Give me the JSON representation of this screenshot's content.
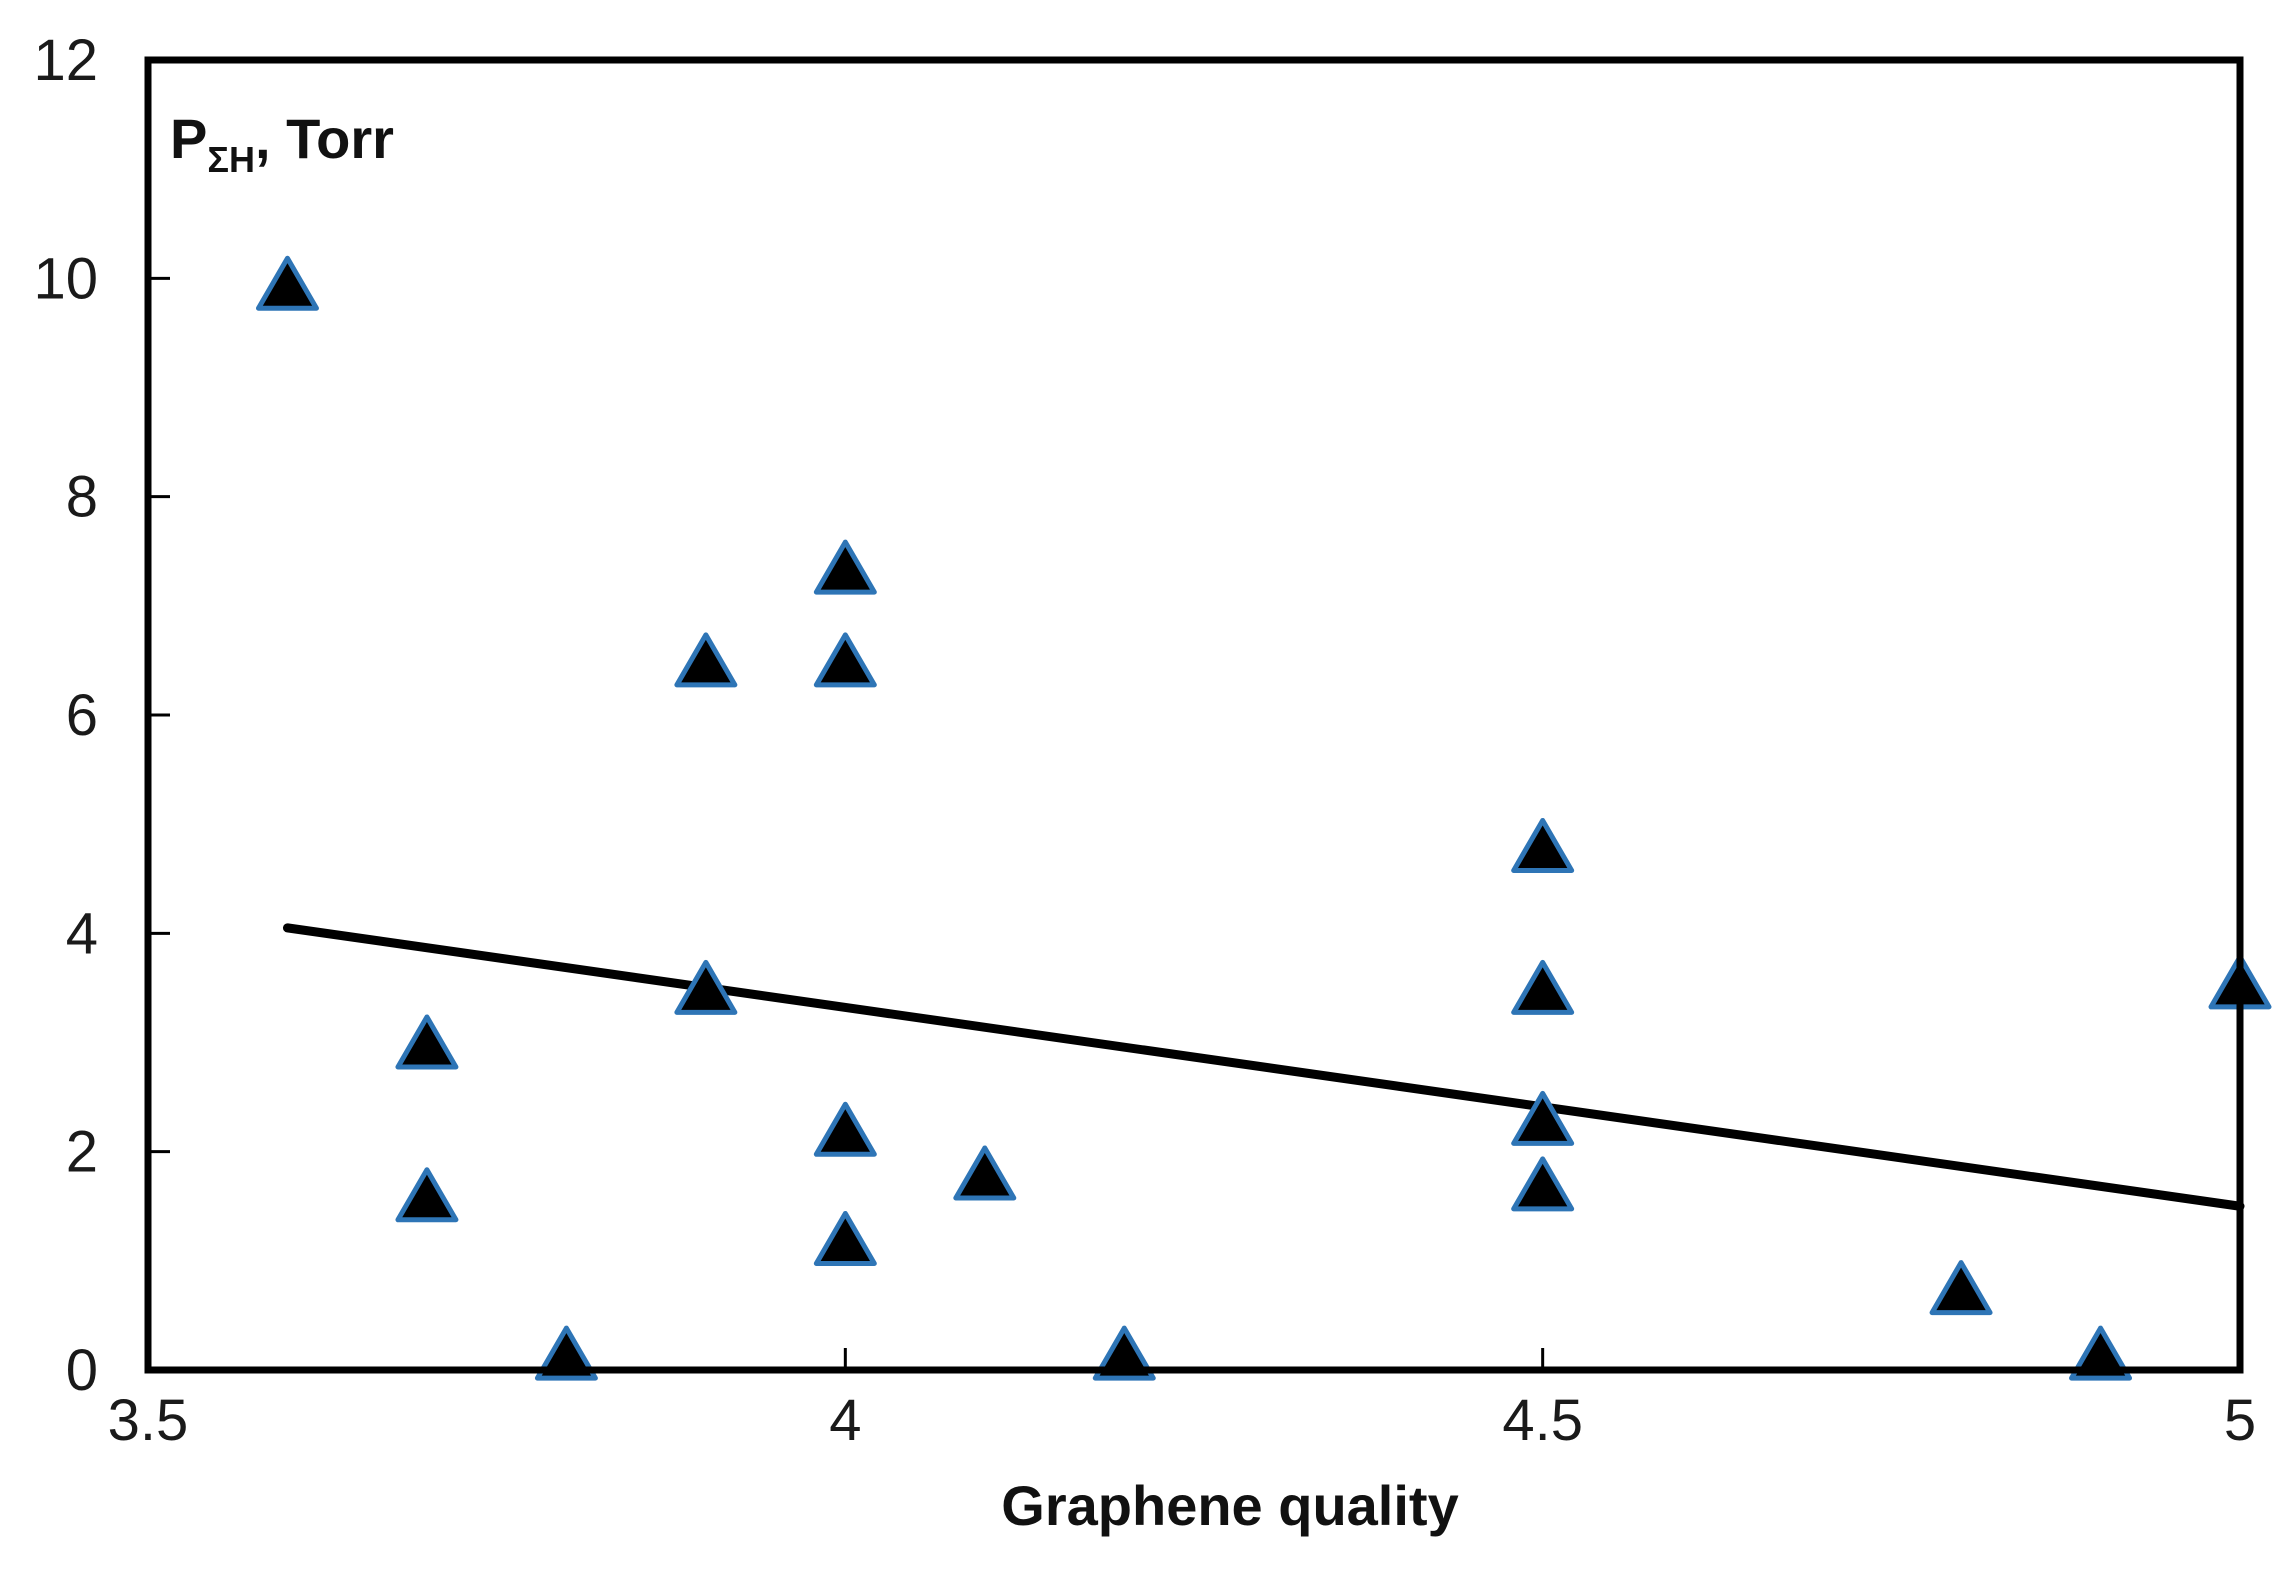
{
  "chart_data": {
    "type": "scatter",
    "title": "",
    "xlabel": "Graphene quality",
    "ylabel": {
      "main": "P",
      "subscript": "ΣH",
      "unit": ", Torr"
    },
    "xlim": [
      3.5,
      5
    ],
    "ylim": [
      0,
      12
    ],
    "x_ticks": [
      3.5,
      4,
      4.5,
      5
    ],
    "x_tick_labels": [
      "3.5",
      "4",
      "4.5",
      "5"
    ],
    "y_ticks": [
      0,
      2,
      4,
      6,
      8,
      10,
      12
    ],
    "y_tick_labels": [
      "0",
      "2",
      "4",
      "6",
      "8",
      "10",
      "12"
    ],
    "grid": false,
    "legend": "none",
    "marker": "triangle",
    "marker_fill": "#000000",
    "marker_edge": "#2e75b6",
    "trendline_color": "#000000",
    "series": [
      {
        "points": [
          {
            "x": 3.6,
            "y": 9.9
          },
          {
            "x": 3.7,
            "y": 2.95
          },
          {
            "x": 3.7,
            "y": 1.55
          },
          {
            "x": 3.8,
            "y": 0.1
          },
          {
            "x": 3.9,
            "y": 6.45
          },
          {
            "x": 3.9,
            "y": 3.45
          },
          {
            "x": 4.0,
            "y": 7.3
          },
          {
            "x": 4.0,
            "y": 6.45
          },
          {
            "x": 4.0,
            "y": 2.15
          },
          {
            "x": 4.0,
            "y": 1.15
          },
          {
            "x": 4.1,
            "y": 1.75
          },
          {
            "x": 4.2,
            "y": 0.1
          },
          {
            "x": 4.5,
            "y": 4.75
          },
          {
            "x": 4.5,
            "y": 3.45
          },
          {
            "x": 4.5,
            "y": 2.25
          },
          {
            "x": 4.5,
            "y": 1.65
          },
          {
            "x": 4.8,
            "y": 0.7
          },
          {
            "x": 4.9,
            "y": 0.1
          },
          {
            "x": 5.0,
            "y": 3.5
          }
        ]
      }
    ],
    "trendline": {
      "x": [
        3.6,
        5.0
      ],
      "y": [
        4.05,
        1.5
      ]
    }
  }
}
